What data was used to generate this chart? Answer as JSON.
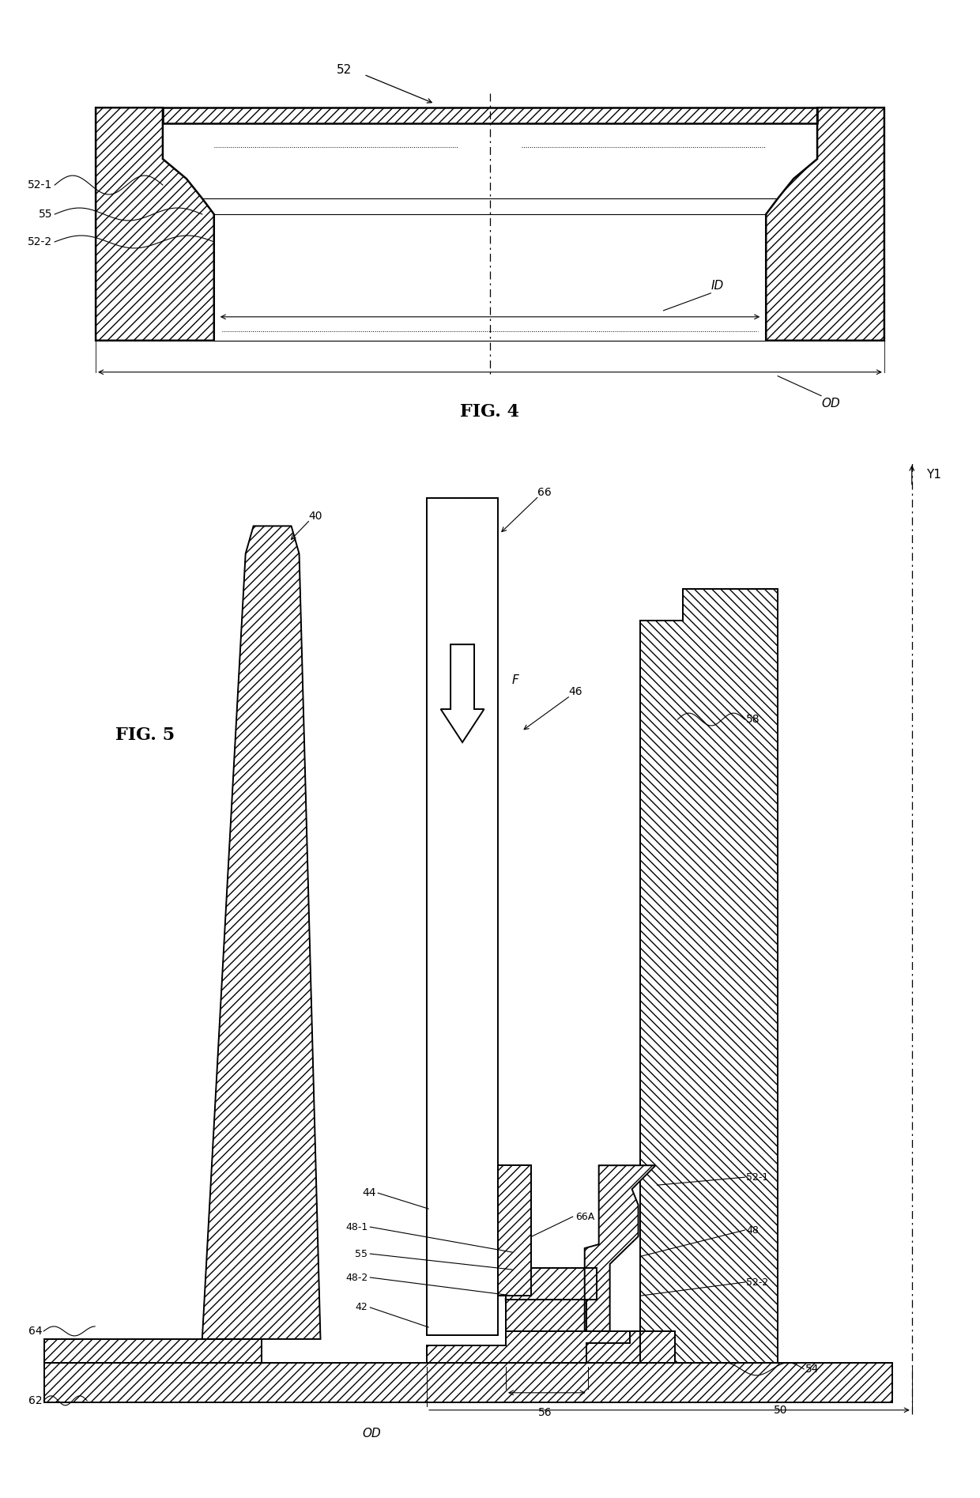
{
  "fig_width": 12.4,
  "fig_height": 18.95,
  "bg_color": "#ffffff",
  "fig4_label": "FIG. 4",
  "fig5_label": "FIG. 5",
  "label_52": "52",
  "label_52_1": "52-1",
  "label_55": "55",
  "label_52_2": "52-2",
  "label_ID": "ID",
  "label_OD": "OD",
  "label_40": "40",
  "label_44": "44",
  "label_46": "46",
  "label_48": "48",
  "label_48_1": "48-1",
  "label_48_2": "48-2",
  "label_42": "42",
  "label_50": "50",
  "label_54": "54",
  "label_56": "56",
  "label_58": "58",
  "label_62": "62",
  "label_64": "64",
  "label_66": "66",
  "label_66A": "66A",
  "label_F": "F",
  "label_Y1": "Y1"
}
